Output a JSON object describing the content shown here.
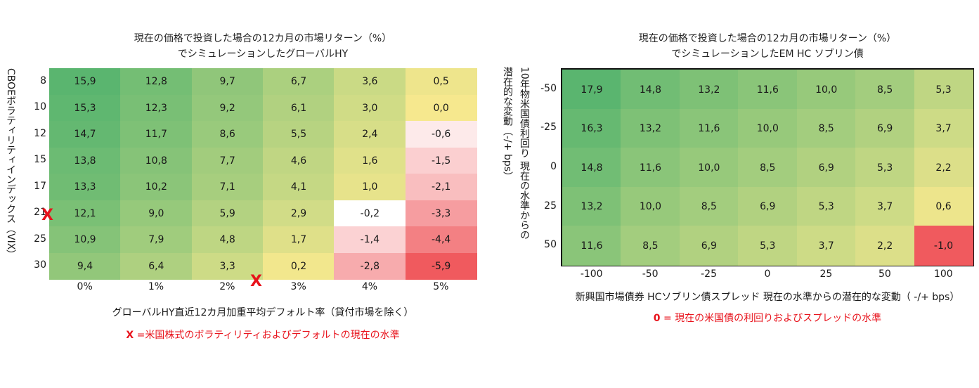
{
  "chart_data": [
    {
      "type": "heatmap",
      "title": "現在の価格で投資した場合の12カ月の市場リターン（%）でシミュレーションしたグローバルHY",
      "title_lines": [
        "現在の価格で投資した場合の12カ月の市場リターン（%）",
        "でシミュレーションしたグローバルHY"
      ],
      "xlabel": "グローバルHY直近12カ月加重平均デフォルト率（貸付市場を除く）",
      "ylabel": "CBOEボラティリティインデックス（VIX）",
      "x_categories": [
        "0%",
        "1%",
        "2%",
        "3%",
        "4%",
        "5%"
      ],
      "y_categories": [
        "8",
        "10",
        "12",
        "15",
        "17",
        "21",
        "25",
        "30"
      ],
      "values": [
        [
          "15,9",
          "12,8",
          "9,7",
          "6,7",
          "3,6",
          "0,5"
        ],
        [
          "15,3",
          "12,3",
          "9,2",
          "6,1",
          "3,0",
          "0,0"
        ],
        [
          "14,7",
          "11,7",
          "8,6",
          "5,5",
          "2,4",
          "-0,6"
        ],
        [
          "13,8",
          "10,8",
          "7,7",
          "4,6",
          "1,6",
          "-1,5"
        ],
        [
          "13,3",
          "10,2",
          "7,1",
          "4,1",
          "1,0",
          "-2,1"
        ],
        [
          "12,1",
          "9,0",
          "5,9",
          "2,9",
          "-0,2",
          "-3,3"
        ],
        [
          "10,9",
          "7,9",
          "4,8",
          "1,7",
          "-1,4",
          "-4,4"
        ],
        [
          "9,4",
          "6,4",
          "3,3",
          "0,2",
          "-2,8",
          "-5,9"
        ]
      ],
      "markers": {
        "symbol": "X",
        "y_at": "21",
        "x_at": "3%"
      },
      "note_symbol": "X",
      "note": " =米国株式のボラティリティおよびデフォルトの現在の水準"
    },
    {
      "type": "heatmap",
      "title": "現在の価格で投資した場合の12カ月の市場リターン（%）でシミュレーションしたEM HC ソブリン債",
      "title_lines": [
        "現在の価格で投資した場合の12カ月の市場リターン（%）",
        "でシミュレーションしたEM HC ソブリン債"
      ],
      "xlabel": "新興国市場債券 HCソブリン債スプレッド 現在の水準からの潜在的な変動（ -/+ bps）",
      "ylabel": "10年物米国債利回り 現在の水準からの潜在的な変動（-/+ bps）",
      "ylabel_lines": [
        "10年物米国債利回り 現在の水準からの",
        "潜在的な変動（-/+ bps）"
      ],
      "x_categories": [
        "-100",
        "-50",
        "-25",
        "0",
        "25",
        "50",
        "100"
      ],
      "y_categories": [
        "-50",
        "-25",
        "0",
        "25",
        "50"
      ],
      "values": [
        [
          "17,9",
          "14,8",
          "13,2",
          "11,6",
          "10,0",
          "8,5",
          "5,3"
        ],
        [
          "16,3",
          "13,2",
          "11,6",
          "10,0",
          "8,5",
          "6,9",
          "3,7"
        ],
        [
          "14,8",
          "11,6",
          "10,0",
          "8,5",
          "6,9",
          "5,3",
          "2,2"
        ],
        [
          "13,2",
          "10,0",
          "8,5",
          "6,9",
          "5,3",
          "3,7",
          "0,6"
        ],
        [
          "11,6",
          "8,5",
          "6,9",
          "5,3",
          "3,7",
          "2,2",
          "-1,0"
        ]
      ],
      "note_symbol": "0",
      "note": " = 現在の米国債の利回りおよびスプレッドの水準"
    }
  ],
  "colors": {
    "high": "#5ab56f",
    "mid": "#f6e88e",
    "zero": "#ffffff",
    "low": "#f05a5e",
    "accent_red": "#e8121b"
  }
}
